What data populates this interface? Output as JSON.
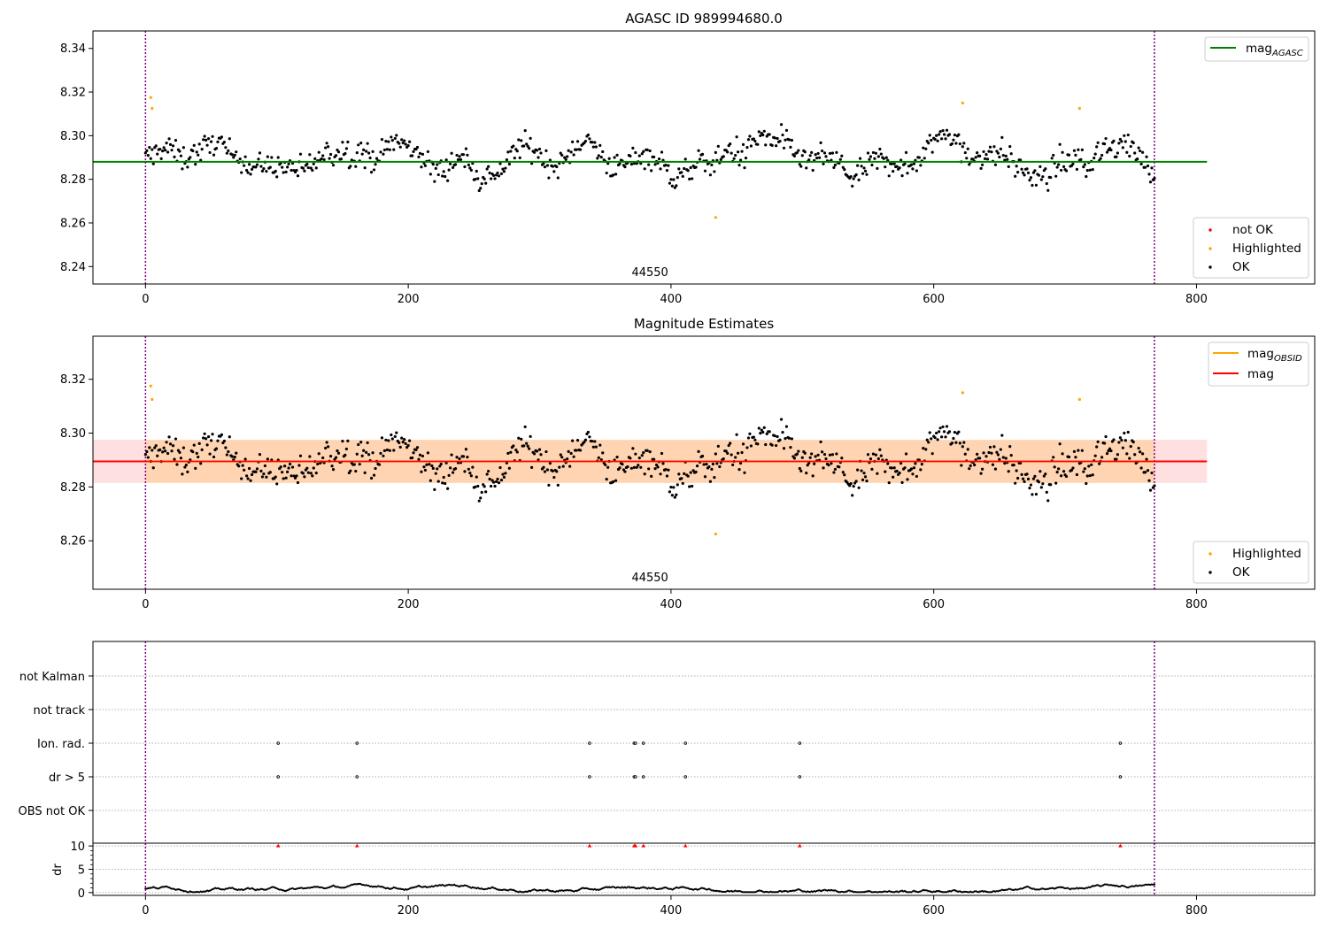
{
  "chart_data": [
    {
      "type": "scatter",
      "title": "AGASC ID 989994680.0",
      "xlim": [
        -40,
        890
      ],
      "ylim": [
        8.232,
        8.348
      ],
      "xticks": [
        0,
        200,
        400,
        600,
        800
      ],
      "yticks": [
        8.24,
        8.26,
        8.28,
        8.3,
        8.32,
        8.34
      ],
      "vlines": [
        0,
        768
      ],
      "obsid_label": "44550",
      "ref_line": {
        "label": "mag",
        "subscript": "AGASC",
        "value": 8.288,
        "x_range": [
          -40,
          808
        ],
        "color": "#008000"
      },
      "legend_lines": [
        {
          "label": "mag",
          "subscript": "AGASC",
          "color": "#008000"
        }
      ],
      "legend_points": [
        {
          "label": "not OK",
          "color": "#ff0000"
        },
        {
          "label": "Highlighted",
          "color": "#ffa500"
        },
        {
          "label": "OK",
          "color": "#000000"
        }
      ],
      "highlighted": [
        [
          4,
          8.3175
        ],
        [
          5,
          8.3125
        ],
        [
          434,
          8.2625
        ],
        [
          622,
          8.315
        ],
        [
          711,
          8.3125
        ]
      ]
    },
    {
      "type": "scatter",
      "title": "Magnitude Estimates",
      "xlim": [
        -40,
        890
      ],
      "ylim": [
        8.242,
        8.336
      ],
      "xticks": [
        0,
        200,
        400,
        600,
        800
      ],
      "yticks": [
        8.26,
        8.28,
        8.3,
        8.32
      ],
      "vlines": [
        0,
        768
      ],
      "obsid_label": "44550",
      "mean_line": {
        "label": "mag",
        "value": 8.2895,
        "band": [
          8.2815,
          8.2975
        ],
        "x_range": [
          -40,
          808
        ],
        "color": "#ff0000"
      },
      "obsid_line": {
        "label": "mag",
        "subscript": "OBSID",
        "color": "#ffa500"
      },
      "legend_lines": [
        {
          "label": "mag",
          "subscript": "OBSID",
          "color": "#ffa500"
        },
        {
          "label": "mag",
          "color": "#ff0000"
        }
      ],
      "legend_points": [
        {
          "label": "Highlighted",
          "color": "#ffa500"
        },
        {
          "label": "OK",
          "color": "#000000"
        }
      ],
      "highlighted": [
        [
          4,
          8.3175
        ],
        [
          5,
          8.3125
        ],
        [
          434,
          8.2625
        ],
        [
          622,
          8.315
        ],
        [
          711,
          8.3125
        ]
      ]
    },
    {
      "type": "scatter",
      "xlim": [
        -40,
        890
      ],
      "vlines": [
        0,
        768
      ],
      "flag_categories": [
        "not Kalman",
        "not track",
        "Ion. rad.",
        "dr > 5",
        "OBS not OK"
      ],
      "flag_points": {
        "Ion. rad.": [
          101,
          161,
          338,
          372,
          373,
          379,
          411,
          498,
          742
        ],
        "dr > 5": [
          101,
          161,
          338,
          372,
          373,
          379,
          411,
          498,
          742
        ]
      },
      "dr_ylabel": "dr",
      "dr_yticks": [
        0,
        5,
        10
      ],
      "dr_ylim": [
        -0.6,
        10.6
      ],
      "dr_high_points": [
        101,
        161,
        338,
        372,
        373,
        379,
        411,
        498,
        742
      ],
      "xticks": [
        0,
        200,
        400,
        600,
        800
      ]
    }
  ]
}
